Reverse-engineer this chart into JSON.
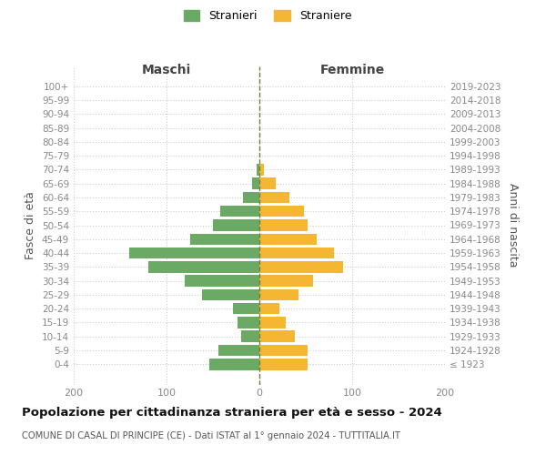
{
  "age_groups": [
    "100+",
    "95-99",
    "90-94",
    "85-89",
    "80-84",
    "75-79",
    "70-74",
    "65-69",
    "60-64",
    "55-59",
    "50-54",
    "45-49",
    "40-44",
    "35-39",
    "30-34",
    "25-29",
    "20-24",
    "15-19",
    "10-14",
    "5-9",
    "0-4"
  ],
  "birth_years": [
    "≤ 1923",
    "1924-1928",
    "1929-1933",
    "1934-1938",
    "1939-1943",
    "1944-1948",
    "1949-1953",
    "1954-1958",
    "1959-1963",
    "1964-1968",
    "1969-1973",
    "1974-1978",
    "1979-1983",
    "1984-1988",
    "1989-1993",
    "1994-1998",
    "1999-2003",
    "2004-2008",
    "2009-2013",
    "2014-2018",
    "2019-2023"
  ],
  "males": [
    0,
    0,
    0,
    0,
    0,
    0,
    3,
    8,
    18,
    42,
    50,
    75,
    140,
    120,
    80,
    62,
    28,
    24,
    20,
    44,
    54
  ],
  "females": [
    0,
    0,
    0,
    0,
    0,
    0,
    5,
    18,
    32,
    48,
    52,
    62,
    80,
    90,
    58,
    42,
    22,
    28,
    38,
    52,
    52
  ],
  "male_color": "#6aaa64",
  "female_color": "#f5b731",
  "background_color": "#ffffff",
  "grid_color": "#cccccc",
  "center_line_color": "#7a7a40",
  "title": "Popolazione per cittadinanza straniera per età e sesso - 2024",
  "subtitle": "COMUNE DI CASAL DI PRINCIPE (CE) - Dati ISTAT al 1° gennaio 2024 - TUTTITALIA.IT",
  "ylabel_left": "Fasce di età",
  "ylabel_right": "Anni di nascita",
  "header_left": "Maschi",
  "header_right": "Femmine",
  "legend_male": "Stranieri",
  "legend_female": "Straniere",
  "xlim": 200,
  "figsize": [
    6.0,
    5.0
  ],
  "dpi": 100
}
